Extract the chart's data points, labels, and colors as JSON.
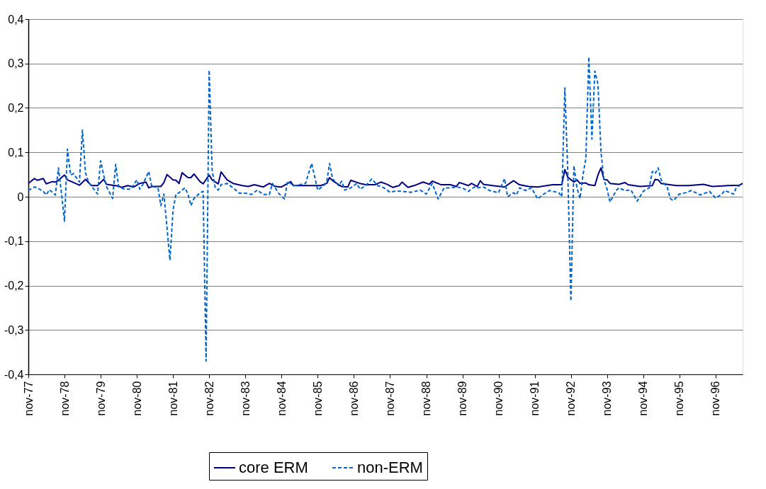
{
  "chart_data": {
    "type": "line",
    "xlim": [
      "1977-11",
      "1997-08"
    ],
    "xticks": [
      {
        "value": "1977-11",
        "label": "nov-77"
      },
      {
        "value": "1978-11",
        "label": "nov-78"
      },
      {
        "value": "1979-11",
        "label": "nov-79"
      },
      {
        "value": "1980-11",
        "label": "nov-80"
      },
      {
        "value": "1981-11",
        "label": "nov-81"
      },
      {
        "value": "1982-11",
        "label": "nov-82"
      },
      {
        "value": "1983-11",
        "label": "nov-83"
      },
      {
        "value": "1984-11",
        "label": "nov-84"
      },
      {
        "value": "1985-11",
        "label": "nov-85"
      },
      {
        "value": "1986-11",
        "label": "nov-86"
      },
      {
        "value": "1987-11",
        "label": "nov-87"
      },
      {
        "value": "1988-11",
        "label": "nov-88"
      },
      {
        "value": "1989-11",
        "label": "nov-89"
      },
      {
        "value": "1990-11",
        "label": "nov-90"
      },
      {
        "value": "1991-11",
        "label": "nov-91"
      },
      {
        "value": "1992-11",
        "label": "nov-92"
      },
      {
        "value": "1993-11",
        "label": "nov-93"
      },
      {
        "value": "1994-11",
        "label": "nov-94"
      },
      {
        "value": "1995-11",
        "label": "nov-95"
      },
      {
        "value": "1996-11",
        "label": "nov-96"
      }
    ],
    "ylim": [
      -0.4,
      0.4
    ],
    "yticks": [
      {
        "value": -0.4,
        "label": "-0,4"
      },
      {
        "value": -0.3,
        "label": "-0,3"
      },
      {
        "value": -0.2,
        "label": "-0,2"
      },
      {
        "value": -0.1,
        "label": "-0,1"
      },
      0,
      {
        "value": 0.1,
        "label": "0,1"
      },
      {
        "value": 0.2,
        "label": "0,2"
      },
      {
        "value": 0.3,
        "label": "0,3"
      },
      {
        "value": 0.4,
        "label": "0,4"
      }
    ],
    "grid": "y",
    "legend": "bottom",
    "marker": "none",
    "series": [
      {
        "name": "core ERM",
        "color": "#000080",
        "line_style": "solid",
        "x": [
          "1977-11",
          "1978-01",
          "1978-02",
          "1978-04",
          "1978-05",
          "1978-07",
          "1978-08",
          "1978-09",
          "1978-11",
          "1978-12",
          "1979-04",
          "1979-06",
          "1979-08",
          "1979-10",
          "1979-12",
          "1980-01",
          "1980-05",
          "1980-06",
          "1980-08",
          "1980-10",
          "1980-12",
          "1981-02",
          "1981-03",
          "1981-04",
          "1981-07",
          "1981-08",
          "1981-09",
          "1981-11",
          "1981-12",
          "1982-01",
          "1982-02",
          "1982-04",
          "1982-05",
          "1982-06",
          "1982-08",
          "1982-09",
          "1982-11",
          "1982-12",
          "1983-02",
          "1983-03",
          "1983-05",
          "1983-07",
          "1983-10",
          "1983-12",
          "1984-02",
          "1984-05",
          "1984-07",
          "1984-09",
          "1984-11",
          "1985-02",
          "1985-03",
          "1985-07",
          "1985-12",
          "1986-02",
          "1986-03",
          "1986-04",
          "1986-07",
          "1986-09",
          "1986-10",
          "1987-01",
          "1987-03",
          "1987-06",
          "1987-08",
          "1987-10",
          "1987-12",
          "1988-02",
          "1988-03",
          "1988-05",
          "1988-07",
          "1988-10",
          "1988-12",
          "1989-01",
          "1989-04",
          "1989-07",
          "1989-09",
          "1989-10",
          "1990-01",
          "1990-02",
          "1990-04",
          "1990-05",
          "1990-06",
          "1990-09",
          "1991-01",
          "1991-04",
          "1991-06",
          "1991-09",
          "1991-12",
          "1992-05",
          "1992-08",
          "1992-09",
          "1992-10",
          "1992-12",
          "1993-01",
          "1993-02",
          "1993-04",
          "1993-05",
          "1993-07",
          "1993-08",
          "1993-09",
          "1993-10",
          "1993-11",
          "1993-12",
          "1994-03",
          "1994-05",
          "1994-06",
          "1994-10",
          "1995-02",
          "1995-03",
          "1995-04",
          "1995-05",
          "1995-07",
          "1995-10",
          "1996-02",
          "1996-07",
          "1996-10",
          "1997-03",
          "1997-07",
          "1997-08"
        ],
        "values": [
          0.03,
          0.041,
          0.037,
          0.041,
          0.029,
          0.034,
          0.033,
          0.037,
          0.049,
          0.038,
          0.026,
          0.039,
          0.025,
          0.025,
          0.039,
          0.028,
          0.024,
          0.021,
          0.025,
          0.022,
          0.03,
          0.033,
          0.02,
          0.023,
          0.023,
          0.032,
          0.05,
          0.038,
          0.037,
          0.03,
          0.054,
          0.043,
          0.043,
          0.051,
          0.034,
          0.029,
          0.049,
          0.038,
          0.029,
          0.056,
          0.038,
          0.03,
          0.025,
          0.023,
          0.027,
          0.022,
          0.03,
          0.023,
          0.022,
          0.034,
          0.025,
          0.025,
          0.025,
          0.03,
          0.043,
          0.036,
          0.023,
          0.022,
          0.037,
          0.03,
          0.027,
          0.027,
          0.033,
          0.028,
          0.021,
          0.025,
          0.033,
          0.021,
          0.025,
          0.033,
          0.028,
          0.035,
          0.027,
          0.027,
          0.023,
          0.032,
          0.025,
          0.03,
          0.023,
          0.036,
          0.028,
          0.025,
          0.022,
          0.036,
          0.027,
          0.023,
          0.022,
          0.027,
          0.027,
          0.061,
          0.044,
          0.033,
          0.038,
          0.03,
          0.031,
          0.027,
          0.025,
          0.049,
          0.065,
          0.039,
          0.038,
          0.03,
          0.028,
          0.032,
          0.027,
          0.023,
          0.025,
          0.039,
          0.038,
          0.03,
          0.028,
          0.025,
          0.025,
          0.028,
          0.023,
          0.025,
          0.026,
          0.03
        ]
      },
      {
        "name": "non-ERM",
        "color": "#0066cc",
        "line_style": "dashed",
        "x": [
          "1977-11",
          "1978-01",
          "1978-02",
          "1978-04",
          "1978-05",
          "1978-06",
          "1978-08",
          "1978-09",
          "1978-10",
          "1978-11",
          "1978-12",
          "1979-01",
          "1979-02",
          "1979-04",
          "1979-05",
          "1979-06",
          "1979-07",
          "1979-10",
          "1979-11",
          "1979-12",
          "1980-01",
          "1980-03",
          "1980-04",
          "1980-05",
          "1980-07",
          "1980-09",
          "1980-11",
          "1980-12",
          "1981-01",
          "1981-03",
          "1981-04",
          "1981-06",
          "1981-07",
          "1981-08",
          "1981-10",
          "1981-11",
          "1981-12",
          "1982-01",
          "1982-03",
          "1982-04",
          "1982-05",
          "1982-06",
          "1982-08",
          "1982-09",
          "1982-10",
          "1982-11",
          "1982-12",
          "1983-01",
          "1983-02",
          "1983-03",
          "1983-05",
          "1983-07",
          "1983-09",
          "1983-11",
          "1984-01",
          "1984-03",
          "1984-05",
          "1984-07",
          "1984-08",
          "1984-10",
          "1984-12",
          "1985-01",
          "1985-03",
          "1985-05",
          "1985-07",
          "1985-09",
          "1985-11",
          "1986-01",
          "1986-02",
          "1986-03",
          "1986-04",
          "1986-06",
          "1986-07",
          "1986-08",
          "1986-10",
          "1986-12",
          "1987-01",
          "1987-03",
          "1987-05",
          "1987-07",
          "1987-09",
          "1987-11",
          "1988-01",
          "1988-03",
          "1988-06",
          "1988-09",
          "1988-11",
          "1989-01",
          "1989-03",
          "1989-05",
          "1989-07",
          "1989-09",
          "1989-11",
          "1990-01",
          "1990-03",
          "1990-04",
          "1990-06",
          "1990-08",
          "1990-11",
          "1991-01",
          "1991-02",
          "1991-04",
          "1991-05",
          "1991-06",
          "1991-08",
          "1991-10",
          "1991-12",
          "1992-02",
          "1992-04",
          "1992-07",
          "1992-08",
          "1992-09",
          "1992-10",
          "1992-11",
          "1992-12",
          "1993-01",
          "1993-02",
          "1993-03",
          "1993-04",
          "1993-05",
          "1993-06",
          "1993-07",
          "1993-08",
          "1993-09",
          "1993-10",
          "1993-11",
          "1993-12",
          "1994-02",
          "1994-03",
          "1994-05",
          "1994-07",
          "1994-09",
          "1994-11",
          "1995-01",
          "1995-02",
          "1995-03",
          "1995-04",
          "1995-05",
          "1995-07",
          "1995-08",
          "1995-09",
          "1995-11",
          "1996-01",
          "1996-03",
          "1996-06",
          "1996-09",
          "1996-11",
          "1997-01",
          "1997-02",
          "1997-05",
          "1997-06",
          "1997-07"
        ],
        "values": [
          0.014,
          0.022,
          0.02,
          0.012,
          0.004,
          0.016,
          0.004,
          0.065,
          0.009,
          -0.055,
          0.107,
          0.049,
          0.052,
          0.033,
          0.15,
          0.054,
          0.033,
          0.006,
          0.081,
          0.049,
          0.022,
          -0.004,
          0.073,
          0.022,
          0.017,
          0.017,
          0.038,
          0.017,
          0.028,
          0.057,
          0.022,
          0.022,
          -0.02,
          0.006,
          -0.143,
          -0.03,
          0.006,
          0.009,
          0.02,
          0.006,
          -0.02,
          -0.004,
          0.009,
          0.012,
          -0.37,
          0.285,
          0.06,
          0.02,
          0.015,
          0.027,
          0.03,
          0.02,
          0.008,
          0.008,
          0.005,
          0.015,
          0.005,
          0.005,
          0.03,
          0.008,
          -0.005,
          0.035,
          0.025,
          0.027,
          0.03,
          0.075,
          0.015,
          0.025,
          0.035,
          0.075,
          0.04,
          0.025,
          0.035,
          0.015,
          0.02,
          0.03,
          0.017,
          0.025,
          0.04,
          0.025,
          0.02,
          0.01,
          0.013,
          0.012,
          0.01,
          0.015,
          0.006,
          0.03,
          -0.005,
          0.02,
          0.02,
          0.022,
          0.02,
          0.012,
          0.022,
          0.02,
          0.022,
          0.014,
          0.009,
          0.041,
          0.0,
          0.009,
          0.004,
          0.02,
          0.014,
          0.02,
          -0.005,
          0.006,
          0.014,
          0.009,
          0.0,
          0.245,
          0.05,
          -0.235,
          0.07,
          0.02,
          -0.004,
          0.046,
          0.086,
          0.315,
          0.13,
          0.283,
          0.254,
          0.1,
          0.038,
          0.017,
          -0.012,
          0.014,
          0.02,
          0.014,
          0.015,
          -0.01,
          0.012,
          0.02,
          0.057,
          0.052,
          0.065,
          0.038,
          0.022,
          -0.004,
          -0.009,
          0.006,
          0.009,
          0.014,
          0.004,
          0.012,
          -0.003,
          0.005,
          0.014,
          0.006,
          0.022,
          0.025
        ]
      }
    ]
  }
}
